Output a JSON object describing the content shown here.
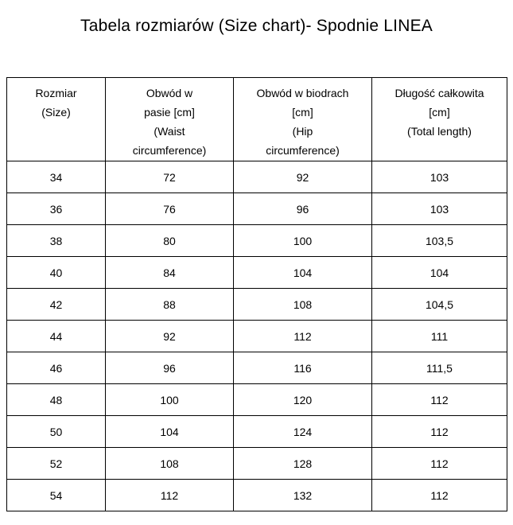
{
  "title": "Tabela rozmiarów (Size chart)- Spodnie LINEA",
  "colors": {
    "background": "#ffffff",
    "text": "#000000",
    "border": "#000000"
  },
  "table": {
    "headers": [
      {
        "lines": [
          "Rozmiar",
          "(Size)"
        ]
      },
      {
        "lines": [
          "Obwód w",
          "pasie [cm]",
          "(Waist",
          "circumference)"
        ]
      },
      {
        "lines": [
          "Obwód w biodrach",
          "[cm]",
          "(Hip",
          "circumference)"
        ]
      },
      {
        "lines": [
          "Długość całkowita",
          "[cm]",
          "(Total length)"
        ]
      }
    ],
    "rows": [
      [
        "34",
        "72",
        "92",
        "103"
      ],
      [
        "36",
        "76",
        "96",
        "103"
      ],
      [
        "38",
        "80",
        "100",
        "103,5"
      ],
      [
        "40",
        "84",
        "104",
        "104"
      ],
      [
        "42",
        "88",
        "108",
        "104,5"
      ],
      [
        "44",
        "92",
        "112",
        "111"
      ],
      [
        "46",
        "96",
        "116",
        "111,5"
      ],
      [
        "48",
        "100",
        "120",
        "112"
      ],
      [
        "50",
        "104",
        "124",
        "112"
      ],
      [
        "52",
        "108",
        "128",
        "112"
      ],
      [
        "54",
        "112",
        "132",
        "112"
      ]
    ]
  }
}
